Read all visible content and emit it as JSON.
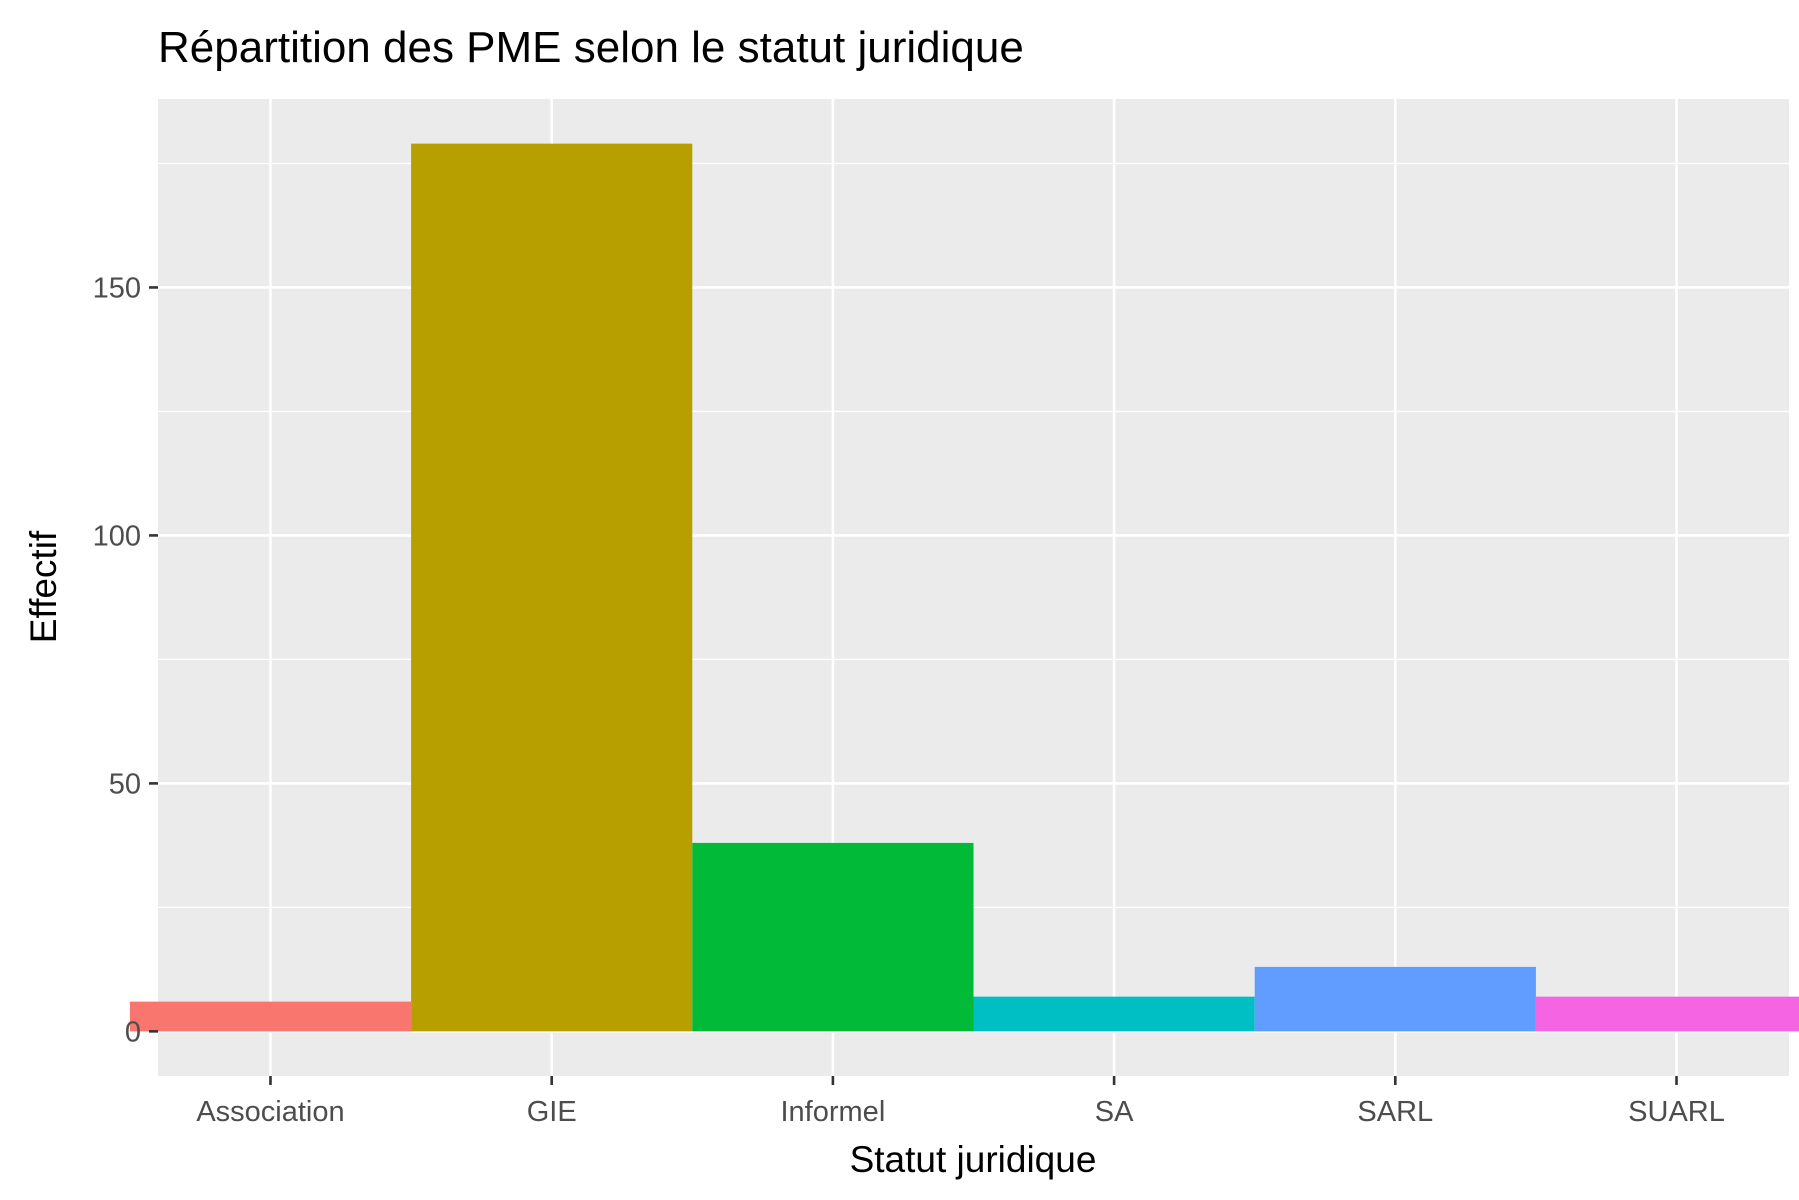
{
  "chart_data": {
    "type": "bar",
    "title": "Répartition des PME selon le statut juridique",
    "xlabel": "Statut juridique",
    "ylabel": "Effectif",
    "categories": [
      "Association",
      "GIE",
      "Informel",
      "SA",
      "SARL",
      "SUARL"
    ],
    "values": [
      6,
      179,
      38,
      7,
      13,
      7
    ],
    "colors": [
      "#F8766D",
      "#B79F00",
      "#00BA38",
      "#00BFC4",
      "#619CFF",
      "#F564E3"
    ],
    "ylim": [
      -9,
      188
    ],
    "yticks": [
      0,
      50,
      100,
      150
    ],
    "yminor": [
      25,
      75,
      125,
      175
    ],
    "grid": true,
    "legend": "none",
    "panel_background": "#EBEBEB",
    "grid_color": "#FFFFFF"
  }
}
